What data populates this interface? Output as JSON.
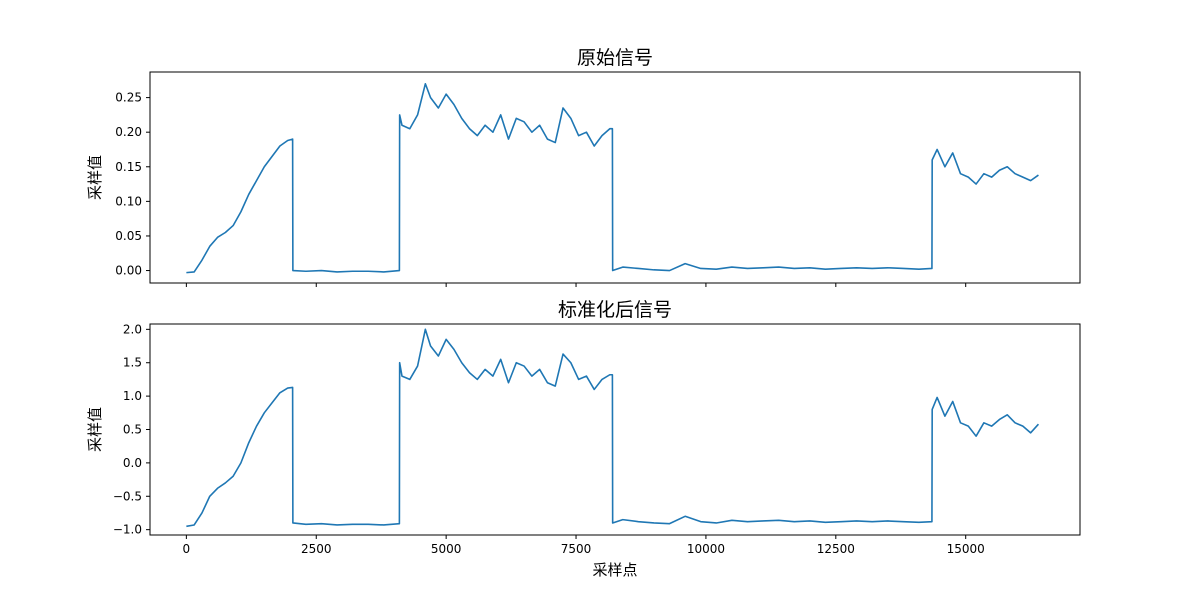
{
  "chart_data": [
    {
      "type": "line",
      "title": "原始信号",
      "xlabel": "",
      "ylabel": "采样值",
      "xlim": [
        -700,
        17200
      ],
      "ylim": [
        -0.018,
        0.287
      ],
      "xticks": [
        0,
        2500,
        5000,
        7500,
        10000,
        12500,
        15000
      ],
      "xtick_labels": [
        "",
        "",
        "",
        "",
        "",
        "",
        ""
      ],
      "yticks": [
        0.0,
        0.05,
        0.1,
        0.15,
        0.2,
        0.25
      ],
      "ytick_labels": [
        "0.00",
        "0.05",
        "0.10",
        "0.15",
        "0.20",
        "0.25"
      ],
      "grid": false,
      "series": [
        {
          "color": "#1f77b4",
          "x": [
            0,
            150,
            300,
            450,
            600,
            750,
            900,
            1050,
            1200,
            1350,
            1500,
            1650,
            1800,
            1950,
            2045,
            2050,
            2300,
            2600,
            2900,
            3200,
            3500,
            3800,
            4100,
            4105,
            4150,
            4300,
            4450,
            4600,
            4700,
            4850,
            5000,
            5150,
            5300,
            5450,
            5600,
            5750,
            5900,
            6050,
            6200,
            6350,
            6500,
            6650,
            6800,
            6950,
            7100,
            7250,
            7400,
            7550,
            7700,
            7850,
            8000,
            8150,
            8200,
            8205,
            8400,
            8700,
            9000,
            9300,
            9600,
            9900,
            10200,
            10500,
            10800,
            11100,
            11400,
            11700,
            12000,
            12300,
            12600,
            12900,
            13200,
            13500,
            13800,
            14100,
            14350,
            14355,
            14450,
            14600,
            14750,
            14900,
            15050,
            15200,
            15350,
            15500,
            15650,
            15800,
            15950,
            16100,
            16250,
            16400
          ],
          "y": [
            -0.003,
            -0.002,
            0.015,
            0.035,
            0.048,
            0.055,
            0.065,
            0.085,
            0.11,
            0.13,
            0.15,
            0.165,
            0.18,
            0.188,
            0.19,
            0.0,
            -0.001,
            0.0,
            -0.002,
            -0.001,
            -0.001,
            -0.002,
            0.0,
            0.225,
            0.21,
            0.205,
            0.225,
            0.27,
            0.25,
            0.235,
            0.255,
            0.24,
            0.22,
            0.205,
            0.195,
            0.21,
            0.2,
            0.225,
            0.19,
            0.22,
            0.215,
            0.2,
            0.21,
            0.19,
            0.185,
            0.235,
            0.22,
            0.195,
            0.2,
            0.18,
            0.195,
            0.205,
            0.205,
            0.0,
            0.005,
            0.003,
            0.001,
            0.0,
            0.01,
            0.003,
            0.002,
            0.005,
            0.003,
            0.004,
            0.005,
            0.003,
            0.004,
            0.002,
            0.003,
            0.004,
            0.003,
            0.004,
            0.003,
            0.002,
            0.003,
            0.16,
            0.175,
            0.15,
            0.17,
            0.14,
            0.135,
            0.125,
            0.14,
            0.135,
            0.145,
            0.15,
            0.14,
            0.135,
            0.13,
            0.138
          ]
        }
      ]
    },
    {
      "type": "line",
      "title": "标准化后信号",
      "xlabel": "采样点",
      "ylabel": "采样值",
      "xlim": [
        -700,
        17200
      ],
      "ylim": [
        -1.08,
        2.08
      ],
      "xticks": [
        0,
        2500,
        5000,
        7500,
        10000,
        12500,
        15000
      ],
      "xtick_labels": [
        "0",
        "2500",
        "5000",
        "7500",
        "10000",
        "12500",
        "15000"
      ],
      "yticks": [
        -1.0,
        -0.5,
        0.0,
        0.5,
        1.0,
        1.5,
        2.0
      ],
      "ytick_labels": [
        "−1.0",
        "−0.5",
        "0.0",
        "0.5",
        "1.0",
        "1.5",
        "2.0"
      ],
      "grid": false,
      "series": [
        {
          "color": "#1f77b4",
          "x": [
            0,
            150,
            300,
            450,
            600,
            750,
            900,
            1050,
            1200,
            1350,
            1500,
            1650,
            1800,
            1950,
            2045,
            2050,
            2300,
            2600,
            2900,
            3200,
            3500,
            3800,
            4100,
            4105,
            4150,
            4300,
            4450,
            4600,
            4700,
            4850,
            5000,
            5150,
            5300,
            5450,
            5600,
            5750,
            5900,
            6050,
            6200,
            6350,
            6500,
            6650,
            6800,
            6950,
            7100,
            7250,
            7400,
            7550,
            7700,
            7850,
            8000,
            8150,
            8200,
            8205,
            8400,
            8700,
            9000,
            9300,
            9600,
            9900,
            10200,
            10500,
            10800,
            11100,
            11400,
            11700,
            12000,
            12300,
            12600,
            12900,
            13200,
            13500,
            13800,
            14100,
            14350,
            14355,
            14450,
            14600,
            14750,
            14900,
            15050,
            15200,
            15350,
            15500,
            15650,
            15800,
            15950,
            16100,
            16250,
            16400
          ],
          "y": [
            -0.95,
            -0.93,
            -0.75,
            -0.5,
            -0.38,
            -0.3,
            -0.2,
            0.0,
            0.3,
            0.55,
            0.75,
            0.9,
            1.05,
            1.12,
            1.13,
            -0.9,
            -0.92,
            -0.91,
            -0.93,
            -0.92,
            -0.92,
            -0.93,
            -0.91,
            1.5,
            1.3,
            1.25,
            1.45,
            2.0,
            1.75,
            1.6,
            1.85,
            1.7,
            1.5,
            1.35,
            1.25,
            1.4,
            1.3,
            1.55,
            1.2,
            1.5,
            1.45,
            1.3,
            1.4,
            1.2,
            1.15,
            1.63,
            1.5,
            1.25,
            1.3,
            1.1,
            1.25,
            1.32,
            1.32,
            -0.9,
            -0.85,
            -0.88,
            -0.9,
            -0.91,
            -0.8,
            -0.88,
            -0.9,
            -0.86,
            -0.88,
            -0.87,
            -0.86,
            -0.88,
            -0.87,
            -0.89,
            -0.88,
            -0.87,
            -0.88,
            -0.87,
            -0.88,
            -0.89,
            -0.88,
            0.8,
            0.98,
            0.7,
            0.92,
            0.6,
            0.55,
            0.4,
            0.6,
            0.55,
            0.65,
            0.72,
            0.6,
            0.55,
            0.45,
            0.58
          ]
        }
      ]
    }
  ]
}
